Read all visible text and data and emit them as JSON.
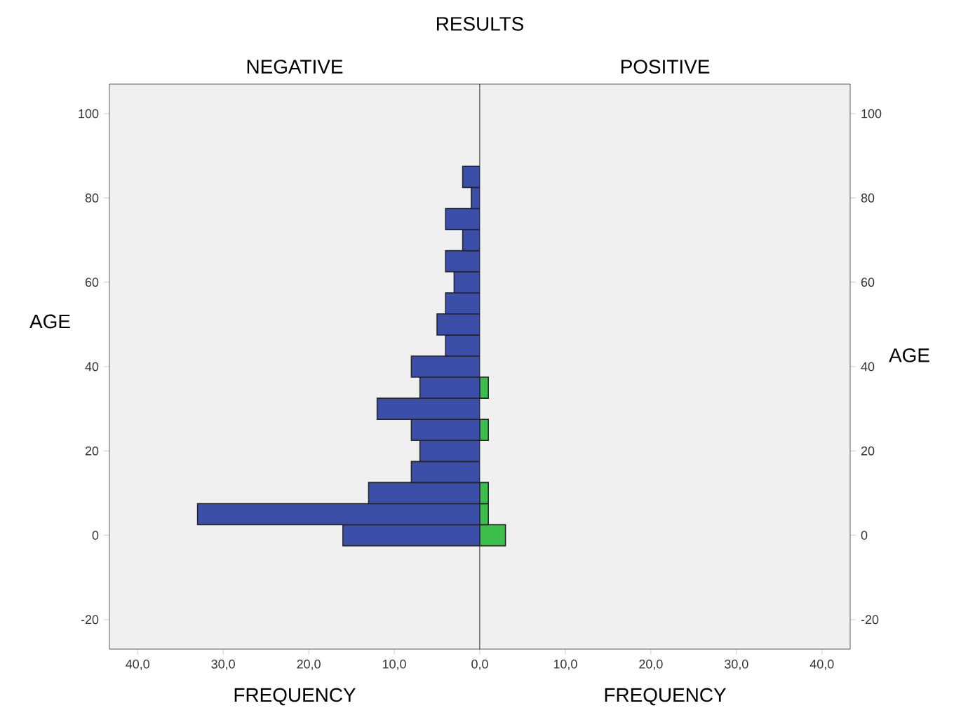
{
  "chart_data": [
    {
      "type": "histogram",
      "orientation": "horizontal",
      "title": "NEGATIVE",
      "xlabel": "FREQUENCY",
      "ylabel": "AGE",
      "annotations": [
        "RESULTS"
      ],
      "bins": [
        -2.5,
        2.5,
        7.5,
        12.5,
        17.5,
        22.5,
        27.5,
        32.5,
        37.5,
        42.5,
        47.5,
        52.5,
        57.5,
        62.5,
        67.5,
        72.5,
        77.5,
        82.5,
        87.5
      ],
      "values": [
        16,
        33,
        13,
        8,
        7,
        8,
        12,
        7,
        8,
        4,
        5,
        4,
        3,
        4,
        2,
        4,
        1,
        2
      ],
      "color": "#3c4fa8",
      "xlim": [
        43.3,
        0
      ],
      "xticks": [
        {
          "value": 40,
          "label": "40,0"
        },
        {
          "value": 30,
          "label": "30,0"
        },
        {
          "value": 20,
          "label": "20,0"
        },
        {
          "value": 10,
          "label": "10,0"
        },
        {
          "value": 0,
          "label": "0,0"
        }
      ],
      "ylim": [
        -27,
        107
      ],
      "yticks": [
        -20,
        0,
        20,
        40,
        60,
        80,
        100
      ]
    },
    {
      "type": "histogram",
      "orientation": "horizontal",
      "title": "POSITIVE",
      "xlabel": "FREQUENCY",
      "ylabel": "AGE",
      "bins": [
        -2.5,
        2.5,
        7.5,
        12.5,
        17.5,
        22.5,
        27.5,
        32.5,
        37.5,
        42.5,
        47.5,
        52.5,
        57.5,
        62.5,
        67.5,
        72.5,
        77.5,
        82.5,
        87.5
      ],
      "values": [
        3,
        1,
        1,
        0,
        0,
        1,
        0,
        1,
        0,
        0,
        0,
        0,
        0,
        0,
        0,
        0,
        0,
        0
      ],
      "color": "#3cbf4a",
      "xlim": [
        0,
        43.3
      ],
      "xticks": [
        {
          "value": 10,
          "label": "10,0"
        },
        {
          "value": 20,
          "label": "20,0"
        },
        {
          "value": 30,
          "label": "30,0"
        },
        {
          "value": 40,
          "label": "40,0"
        }
      ],
      "ylim": [
        -27,
        107
      ],
      "yticks": [
        -20,
        0,
        20,
        40,
        60,
        80,
        100
      ]
    }
  ]
}
